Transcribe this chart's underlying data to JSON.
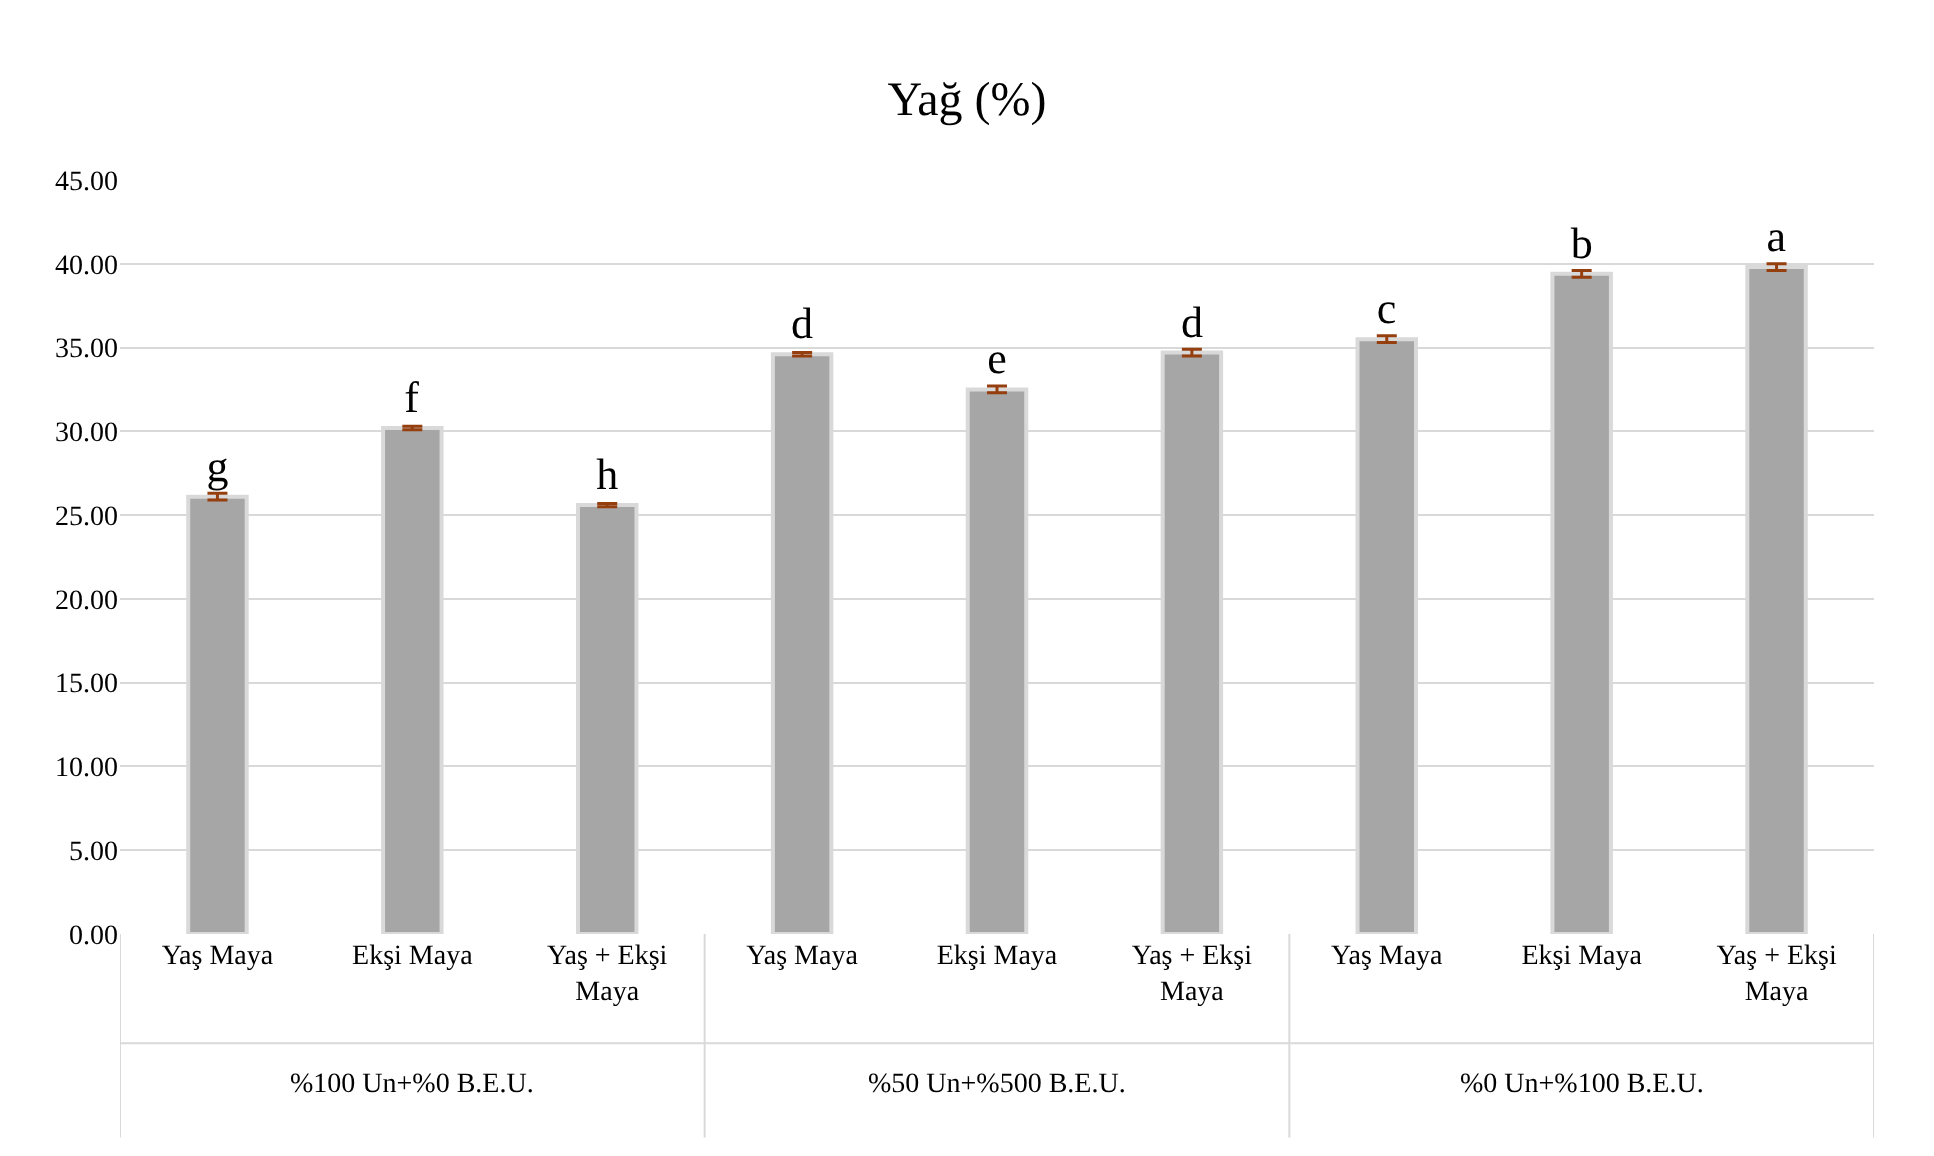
{
  "chart_data": {
    "type": "bar",
    "title": "Yağ (%)",
    "categories": [
      "Yaş Maya",
      "Ekşi Maya",
      "Yaş + Ekşi Maya",
      "Yaş Maya",
      "Ekşi Maya",
      "Yaş + Ekşi Maya",
      "Yaş Maya",
      "Ekşi Maya",
      "Yaş + Ekşi Maya"
    ],
    "values": [
      26.1,
      30.2,
      25.6,
      34.6,
      32.5,
      34.7,
      35.5,
      39.4,
      39.8
    ],
    "errors": [
      0.2,
      0.1,
      0.1,
      0.1,
      0.2,
      0.2,
      0.2,
      0.2,
      0.2
    ],
    "value_labels": [
      "g",
      "f",
      "h",
      "d",
      "e",
      "d",
      "c",
      "b",
      "a"
    ],
    "color": "#a6a6a6",
    "annotations": [
      "%100 Un+%0 B.E.U.",
      "%50 Un+%500 B.E.U.",
      "%0 Un+%100 B.E.U."
    ],
    "ylim": [
      0,
      45
    ],
    "yticks": [
      {
        "value": 0,
        "label": "0.00"
      },
      {
        "value": 5,
        "label": "5.00"
      },
      {
        "value": 10,
        "label": "10.00"
      },
      {
        "value": 15,
        "label": "15.00"
      },
      {
        "value": 20,
        "label": "20.00"
      },
      {
        "value": 25,
        "label": "25.00"
      },
      {
        "value": 30,
        "label": "30.00"
      },
      {
        "value": 35,
        "label": "35.00"
      },
      {
        "value": 40,
        "label": "40.00"
      },
      {
        "value": 45,
        "label": "45.00"
      }
    ],
    "grid": "y"
  }
}
